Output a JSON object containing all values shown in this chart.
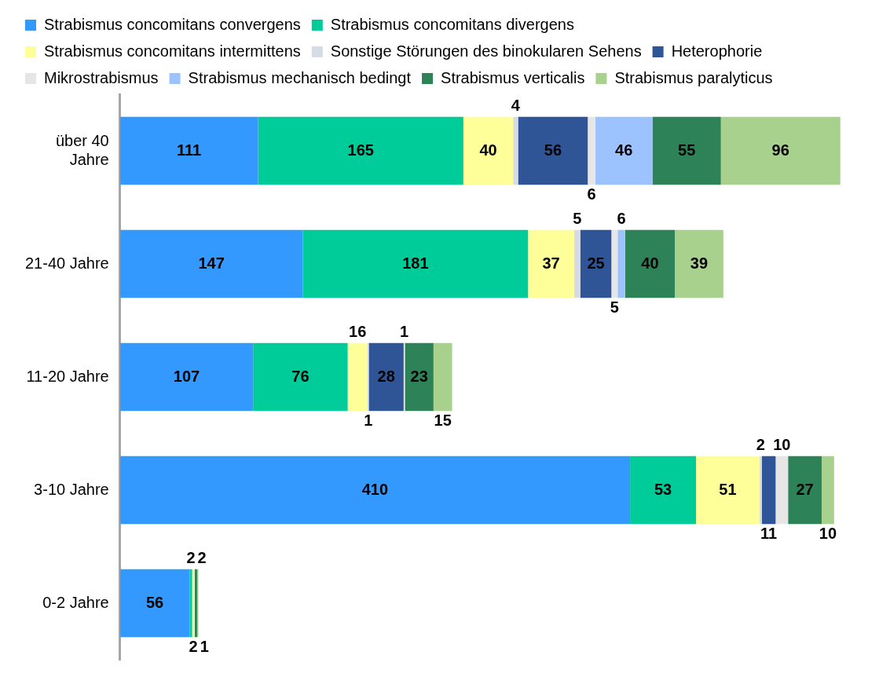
{
  "chart_data": {
    "type": "bar",
    "orientation": "horizontal",
    "stacked": true,
    "tick_labels": "y",
    "data_labels": true,
    "legend": "top",
    "grid": false,
    "categories": [
      "über 40 Jahre",
      "21-40 Jahre",
      "11-20 Jahre",
      "3-10 Jahre",
      "0-2 Jahre"
    ],
    "series": [
      {
        "name": "Strabismus concomitans convergens",
        "color": "#3399ff",
        "values": [
          111,
          147,
          107,
          410,
          56
        ]
      },
      {
        "name": "Strabismus concomitans divergens",
        "color": "#00cc99",
        "values": [
          165,
          181,
          76,
          53,
          2
        ]
      },
      {
        "name": "Strabismus concomitans intermittens",
        "color": "#ffff99",
        "values": [
          40,
          37,
          16,
          51,
          2
        ]
      },
      {
        "name": "Sonstige Störungen des binokularen Sehens",
        "color": "#d6dce5",
        "values": [
          4,
          5,
          1,
          2,
          null
        ]
      },
      {
        "name": "Heterophorie",
        "color": "#2f5597",
        "values": [
          56,
          25,
          28,
          11,
          null
        ]
      },
      {
        "name": "Mikrostrabismus",
        "color": "#e7e6e6",
        "values": [
          6,
          5,
          1,
          10,
          null
        ]
      },
      {
        "name": "Strabismus mechanisch bedingt",
        "color": "#9dc3fe",
        "values": [
          46,
          6,
          null,
          null,
          null
        ]
      },
      {
        "name": "Strabismus verticalis",
        "color": "#2e8258",
        "values": [
          55,
          40,
          23,
          27,
          2
        ]
      },
      {
        "name": "Strabismus paralyticus",
        "color": "#a9d18e",
        "values": [
          96,
          39,
          15,
          10,
          1
        ]
      }
    ]
  }
}
